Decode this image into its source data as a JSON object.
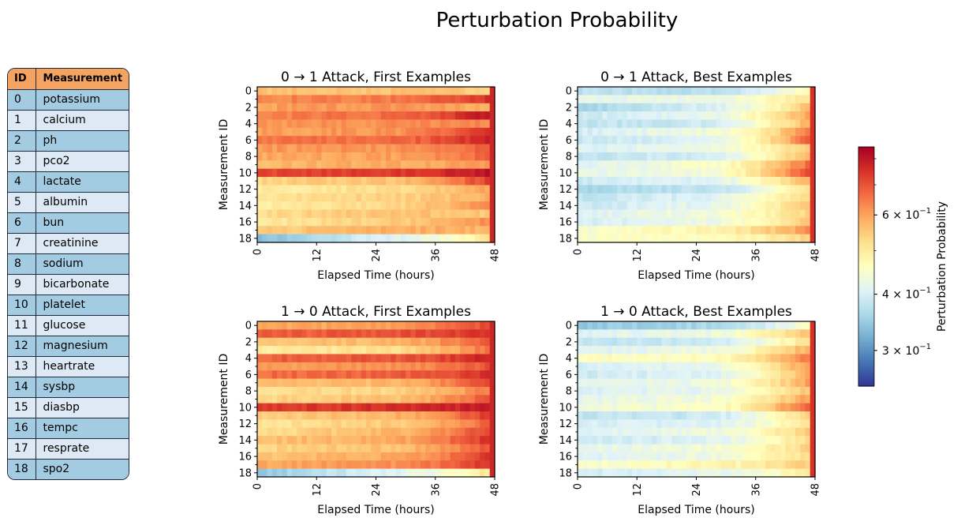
{
  "suptitle": "Perturbation Probability",
  "table": {
    "headers": [
      "ID",
      "Measurement"
    ],
    "rows": [
      [
        "0",
        "potassium"
      ],
      [
        "1",
        "calcium"
      ],
      [
        "2",
        "ph"
      ],
      [
        "3",
        "pco2"
      ],
      [
        "4",
        "lactate"
      ],
      [
        "5",
        "albumin"
      ],
      [
        "6",
        "bun"
      ],
      [
        "7",
        "creatinine"
      ],
      [
        "8",
        "sodium"
      ],
      [
        "9",
        "bicarbonate"
      ],
      [
        "10",
        "platelet"
      ],
      [
        "11",
        "glucose"
      ],
      [
        "12",
        "magnesium"
      ],
      [
        "13",
        "heartrate"
      ],
      [
        "14",
        "sysbp"
      ],
      [
        "15",
        "diasbp"
      ],
      [
        "16",
        "tempc"
      ],
      [
        "17",
        "resprate"
      ],
      [
        "18",
        "spo2"
      ]
    ],
    "header_color": "#f4a460",
    "row_colors": [
      "#a3cce3",
      "#dde9f5"
    ]
  },
  "chart_data": [
    {
      "type": "heatmap",
      "title": "0 → 1 Attack, First Examples",
      "xlabel": "Elapsed Time (hours)",
      "ylabel": "Measurement ID",
      "x_ticks": [
        "0",
        "12",
        "24",
        "36",
        "48"
      ],
      "y_ticks": [
        "0",
        "2",
        "4",
        "6",
        "8",
        "10",
        "12",
        "14",
        "16",
        "18"
      ],
      "x_range": [
        0,
        48
      ],
      "y_range": [
        0,
        18
      ],
      "row_values_start": [
        0.66,
        0.76,
        0.72,
        0.76,
        0.73,
        0.72,
        0.78,
        0.73,
        0.7,
        0.68,
        0.86,
        0.62,
        0.56,
        0.58,
        0.55,
        0.6,
        0.57,
        0.63,
        0.23
      ],
      "row_values_mid": [
        0.66,
        0.78,
        0.74,
        0.8,
        0.75,
        0.74,
        0.8,
        0.74,
        0.72,
        0.7,
        0.88,
        0.66,
        0.6,
        0.63,
        0.62,
        0.66,
        0.64,
        0.7,
        0.4
      ],
      "row_values_end": [
        0.64,
        0.9,
        0.7,
        0.95,
        0.76,
        0.92,
        0.93,
        0.82,
        0.82,
        0.72,
        0.95,
        0.88,
        0.72,
        0.7,
        0.76,
        0.65,
        0.75,
        0.68,
        0.58
      ],
      "last_column": 0.92
    },
    {
      "type": "heatmap",
      "title": "0 → 1 Attack, Best Examples",
      "xlabel": "Elapsed Time (hours)",
      "ylabel": "Measurement ID",
      "x_ticks": [
        "0",
        "12",
        "24",
        "36",
        "48"
      ],
      "y_ticks": [
        "0",
        "2",
        "4",
        "6",
        "8",
        "10",
        "12",
        "14",
        "16",
        "18"
      ],
      "x_range": [
        0,
        48
      ],
      "y_range": [
        0,
        18
      ],
      "row_values_start": [
        0.33,
        0.42,
        0.3,
        0.36,
        0.34,
        0.38,
        0.36,
        0.4,
        0.34,
        0.4,
        0.42,
        0.36,
        0.3,
        0.34,
        0.36,
        0.4,
        0.38,
        0.46,
        0.48
      ],
      "row_values_mid": [
        0.33,
        0.44,
        0.38,
        0.42,
        0.36,
        0.45,
        0.4,
        0.44,
        0.38,
        0.48,
        0.46,
        0.4,
        0.34,
        0.4,
        0.42,
        0.46,
        0.44,
        0.54,
        0.5
      ],
      "row_values_end": [
        0.52,
        0.6,
        0.66,
        0.72,
        0.7,
        0.76,
        0.82,
        0.64,
        0.7,
        0.8,
        0.86,
        0.7,
        0.58,
        0.62,
        0.66,
        0.62,
        0.64,
        0.74,
        0.62
      ],
      "last_column": 0.9
    },
    {
      "type": "heatmap",
      "title": "1 → 0 Attack, First Examples",
      "xlabel": "Elapsed Time (hours)",
      "ylabel": "Measurement ID",
      "x_ticks": [
        "0",
        "12",
        "24",
        "36",
        "48"
      ],
      "y_ticks": [
        "0",
        "2",
        "4",
        "6",
        "8",
        "10",
        "12",
        "14",
        "16",
        "18"
      ],
      "x_range": [
        0,
        48
      ],
      "y_range": [
        0,
        18
      ],
      "row_values_start": [
        0.7,
        0.82,
        0.66,
        0.56,
        0.82,
        0.72,
        0.8,
        0.66,
        0.6,
        0.62,
        0.88,
        0.64,
        0.58,
        0.6,
        0.66,
        0.62,
        0.66,
        0.7,
        0.26
      ],
      "row_values_mid": [
        0.72,
        0.84,
        0.68,
        0.6,
        0.84,
        0.74,
        0.82,
        0.68,
        0.62,
        0.66,
        0.9,
        0.68,
        0.64,
        0.68,
        0.7,
        0.66,
        0.7,
        0.74,
        0.4
      ],
      "row_values_end": [
        0.86,
        0.9,
        0.84,
        0.8,
        0.92,
        0.84,
        0.9,
        0.86,
        0.78,
        0.84,
        0.94,
        0.88,
        0.82,
        0.86,
        0.9,
        0.84,
        0.88,
        0.9,
        0.58
      ],
      "last_column": 0.92
    },
    {
      "type": "heatmap",
      "title": "1 → 0 Attack, Best Examples",
      "xlabel": "Elapsed Time (hours)",
      "ylabel": "Measurement ID",
      "x_ticks": [
        "0",
        "12",
        "24",
        "36",
        "48"
      ],
      "y_ticks": [
        "0",
        "2",
        "4",
        "6",
        "8",
        "10",
        "12",
        "14",
        "16",
        "18"
      ],
      "x_range": [
        0,
        48
      ],
      "y_range": [
        0,
        18
      ],
      "row_values_start": [
        0.26,
        0.4,
        0.34,
        0.4,
        0.5,
        0.38,
        0.36,
        0.4,
        0.4,
        0.42,
        0.44,
        0.34,
        0.38,
        0.4,
        0.36,
        0.42,
        0.4,
        0.48,
        0.38
      ],
      "row_values_mid": [
        0.3,
        0.44,
        0.36,
        0.44,
        0.5,
        0.42,
        0.4,
        0.44,
        0.42,
        0.46,
        0.48,
        0.36,
        0.4,
        0.44,
        0.4,
        0.46,
        0.44,
        0.52,
        0.42
      ],
      "row_values_end": [
        0.5,
        0.66,
        0.6,
        0.7,
        0.78,
        0.74,
        0.7,
        0.72,
        0.66,
        0.72,
        0.82,
        0.62,
        0.58,
        0.64,
        0.6,
        0.62,
        0.6,
        0.64,
        0.56
      ],
      "last_column": 0.9
    }
  ],
  "colorbar": {
    "label": "Perturbation Probability",
    "colormap": "RdYlBu_r",
    "scale": "log",
    "range": [
      0.25,
      0.85
    ],
    "ticks": [
      {
        "value": 0.6,
        "base": "6",
        "exp": "−1"
      },
      {
        "value": 0.4,
        "base": "4",
        "exp": "−1"
      },
      {
        "value": 0.3,
        "base": "3",
        "exp": "−1"
      }
    ]
  }
}
